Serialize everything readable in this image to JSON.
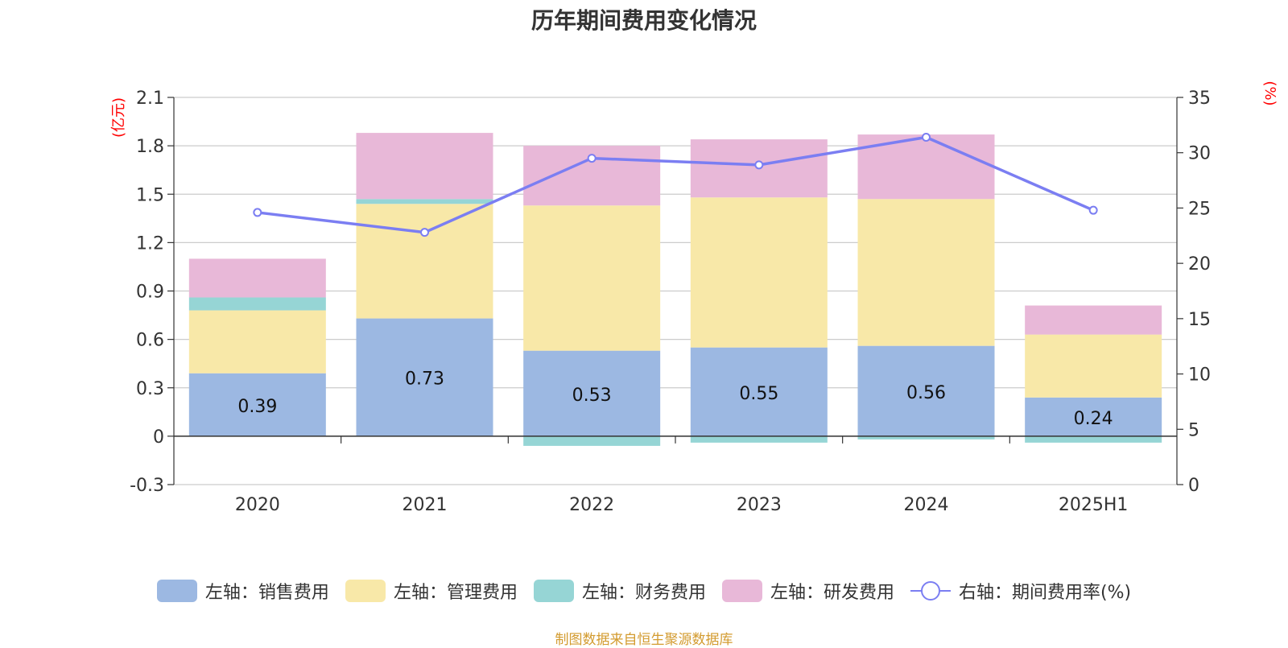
{
  "chart_data": {
    "type": "bar",
    "title": "历年期间费用变化情况",
    "left_unit": "(亿元)",
    "right_unit": "(%)",
    "categories": [
      "2020",
      "2021",
      "2022",
      "2023",
      "2024",
      "2025H1"
    ],
    "left_axis": {
      "ylim": [
        -0.3,
        2.1
      ],
      "ticks": [
        "2.1",
        "1.8",
        "1.5",
        "1.2",
        "0.9",
        "0.6",
        "0.3",
        "0",
        "-0.3"
      ]
    },
    "right_axis": {
      "ylim": [
        0,
        35
      ],
      "ticks": [
        "35",
        "30",
        "25",
        "20",
        "15",
        "10",
        "5",
        "0"
      ]
    },
    "grid": true,
    "legend_position": "bottom",
    "series": [
      {
        "name": "左轴：销售费用",
        "axis": "left",
        "stack": true,
        "color": "#9cb8e2",
        "values": [
          0.39,
          0.73,
          0.53,
          0.55,
          0.56,
          0.24
        ],
        "labels": [
          "0.39",
          "0.73",
          "0.53",
          "0.55",
          "0.56",
          "0.24"
        ]
      },
      {
        "name": "左轴：管理费用",
        "axis": "left",
        "stack": true,
        "color": "#f8e8a8",
        "values": [
          0.39,
          0.71,
          0.9,
          0.93,
          0.91,
          0.39
        ]
      },
      {
        "name": "左轴：财务费用",
        "axis": "left",
        "stack": true,
        "color": "#96d5d5",
        "values": [
          0.08,
          0.03,
          -0.06,
          -0.04,
          -0.02,
          -0.04
        ]
      },
      {
        "name": "左轴：研发费用",
        "axis": "left",
        "stack": true,
        "color": "#e8b8d8",
        "values": [
          0.24,
          0.41,
          0.37,
          0.36,
          0.4,
          0.18
        ]
      },
      {
        "name": "右轴：期间费用率(%)",
        "axis": "right",
        "type": "line",
        "color": "#7b7ef2",
        "values": [
          24.6,
          22.8,
          29.5,
          28.9,
          31.4,
          24.8
        ]
      }
    ],
    "source": "制图数据来自恒生聚源数据库"
  }
}
